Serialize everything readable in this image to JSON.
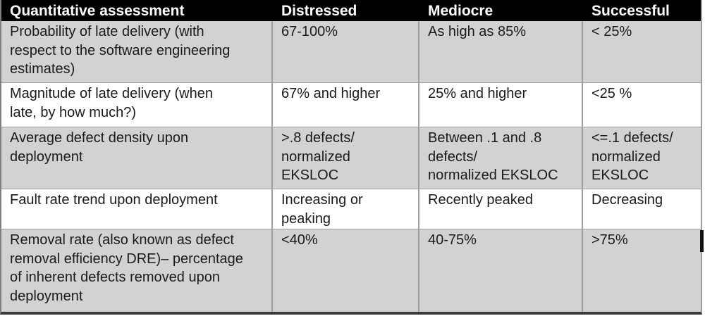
{
  "table": {
    "header": [
      "Quantitative assessment",
      "Distressed",
      "Mediocre",
      "Successful"
    ],
    "rows": [
      {
        "cells": [
          "Probability of late delivery (with\nrespect to the software engineering\nestimates)",
          "67-100%",
          "As high as 85%",
          "< 25%"
        ]
      },
      {
        "cells": [
          "Magnitude of late delivery (when\nlate, by how much?)",
          "67% and higher",
          "25% and higher",
          "<25 %"
        ]
      },
      {
        "cells": [
          "Average defect density upon\ndeployment",
          ">.8 defects/\nnormalized\nEKSLOC",
          "Between .1 and .8\ndefects/\nnormalized EKSLOC",
          "<=.1 defects/\nnormalized\nEKSLOC"
        ]
      },
      {
        "cells": [
          "Fault rate trend upon deployment",
          "Increasing or\npeaking",
          "Recently peaked",
          "Decreasing"
        ]
      },
      {
        "cells": [
          "Removal rate (also known as defect\nremoval efficiency DRE)– percentage\nof inherent defects removed upon\ndeployment",
          "<40%",
          "40-75%",
          ">75%"
        ]
      }
    ]
  },
  "colors": {
    "header_bg": "#000000",
    "header_text": "#ffffff",
    "row_shaded": "#d2d2d2",
    "row_plain": "#ffffff",
    "grid_line": "#9e9e9e",
    "outer_border": "#7f7f7f",
    "bottom_border": "#3a3a3a",
    "body_text": "#1a1a1a"
  }
}
